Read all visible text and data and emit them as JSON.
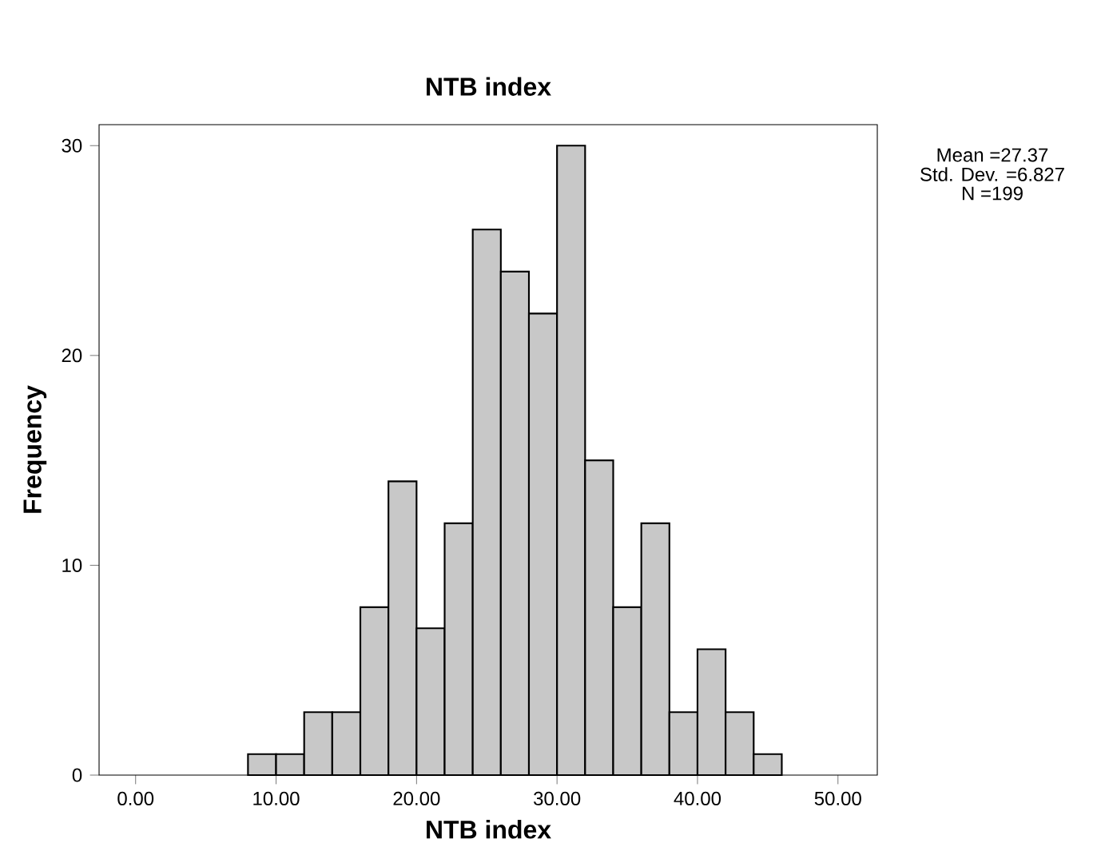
{
  "chart_data": {
    "type": "histogram",
    "title": "NTB index",
    "xlabel": "NTB index",
    "ylabel": "Frequency",
    "bins": [
      8,
      10,
      12,
      14,
      16,
      18,
      20,
      22,
      24,
      26,
      28,
      30,
      32,
      34,
      36,
      38,
      40,
      42,
      44,
      46
    ],
    "values": [
      1,
      1,
      3,
      3,
      8,
      14,
      7,
      12,
      26,
      24,
      22,
      30,
      15,
      8,
      12,
      3,
      6,
      3,
      1
    ],
    "color": "#c8c8c8",
    "xlim": [
      -2.6,
      52.8
    ],
    "xticks": [
      {
        "value": 0,
        "label": "0.00"
      },
      {
        "value": 10,
        "label": "10.00"
      },
      {
        "value": 20,
        "label": "20.00"
      },
      {
        "value": 30,
        "label": "30.00"
      },
      {
        "value": 40,
        "label": "40.00"
      },
      {
        "value": 50,
        "label": "50.00"
      }
    ],
    "ylim": [
      0,
      31
    ],
    "yticks": [
      0,
      10,
      20,
      30
    ],
    "annotations": [
      "Mean =27.37",
      "Std. Dev. =6.827",
      "N =199"
    ],
    "grid": false
  }
}
